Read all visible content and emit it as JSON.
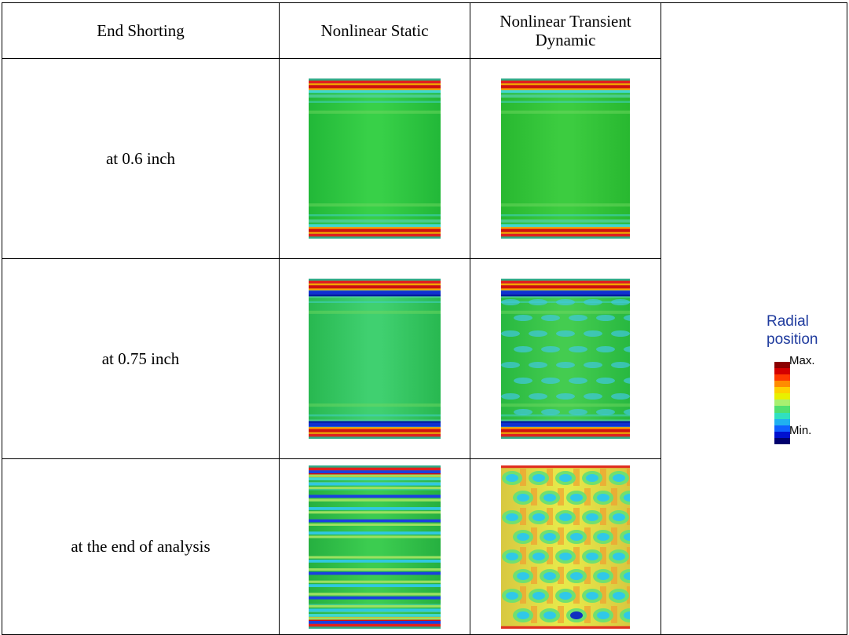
{
  "table": {
    "header": [
      "End Shorting",
      "Nonlinear Static",
      "Nonlinear Transient Dynamic"
    ],
    "rows": [
      [
        "at 0.6 inch"
      ],
      [
        "at 0.75 inch"
      ],
      [
        "at the end of analysis"
      ]
    ]
  },
  "legend": {
    "title": "Radial position",
    "max": "Max.",
    "min": "Min."
  }
}
